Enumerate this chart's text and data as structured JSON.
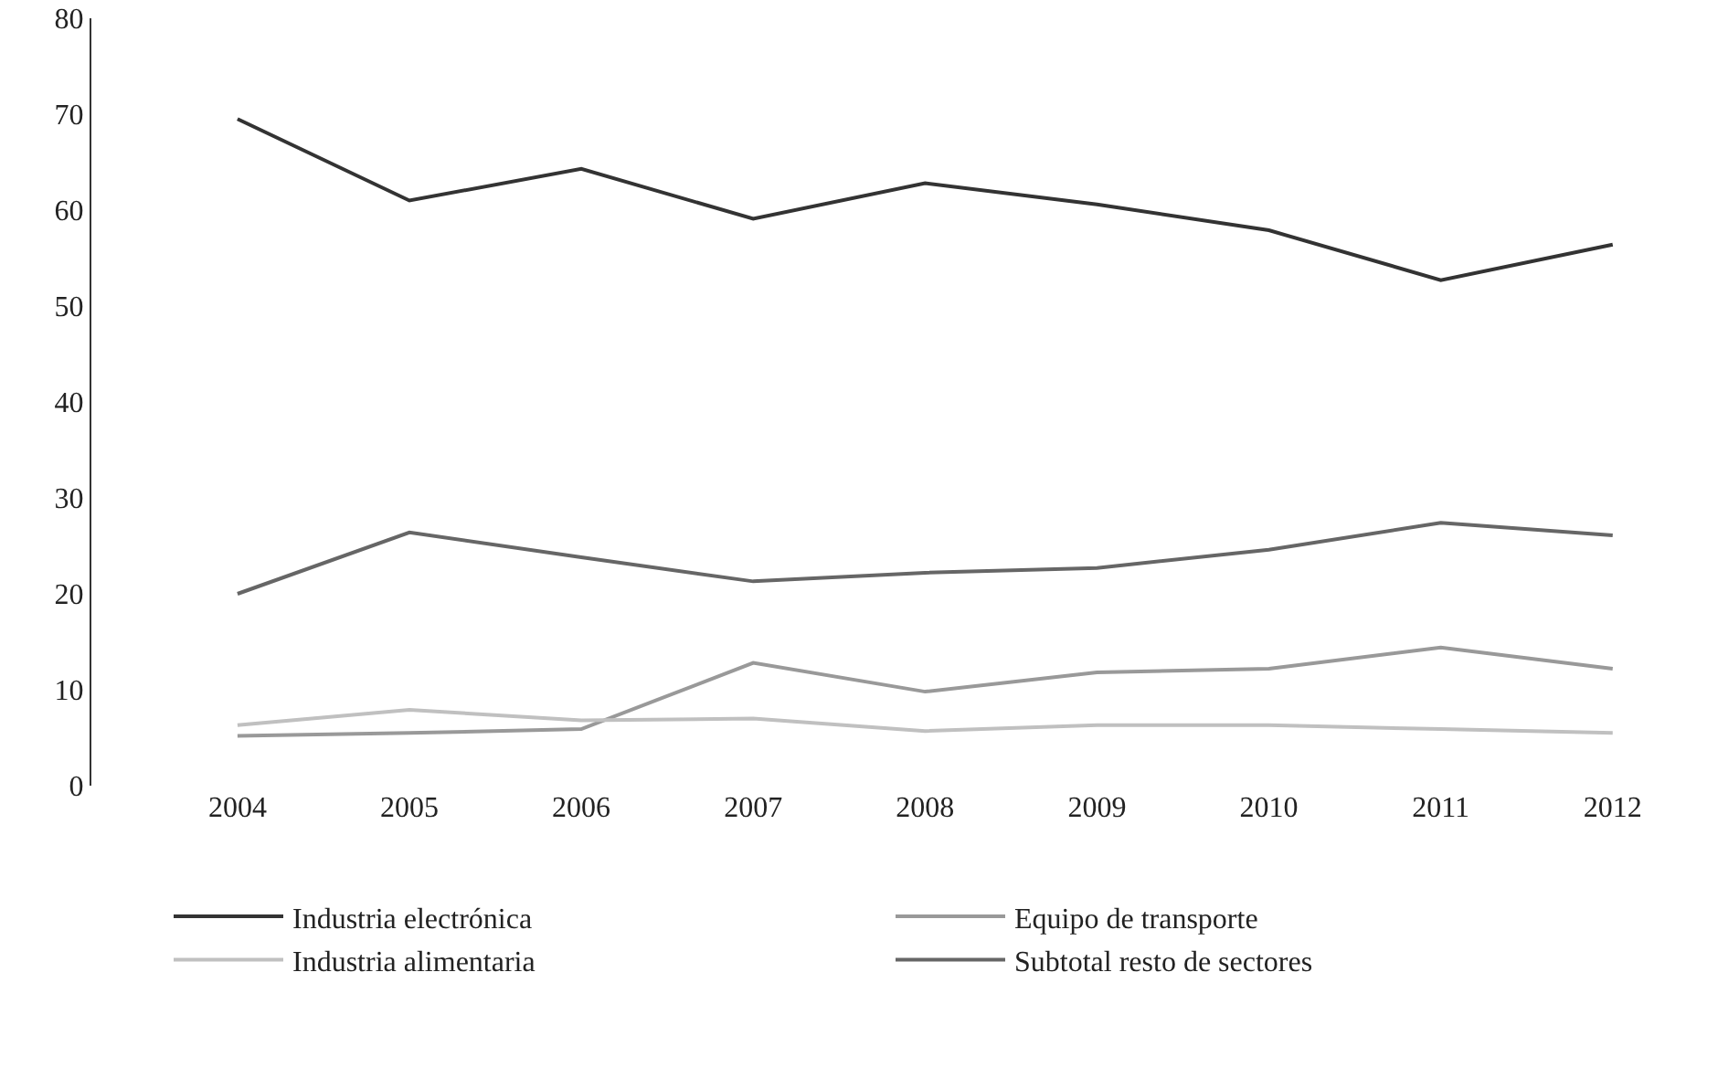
{
  "chart_data": {
    "type": "line",
    "categories": [
      "2004",
      "2005",
      "2006",
      "2007",
      "2008",
      "2009",
      "2010",
      "2011",
      "2012"
    ],
    "series": [
      {
        "name": "Industria electrónica",
        "color": "#333333",
        "values": [
          69.5,
          61.0,
          64.3,
          59.1,
          62.8,
          60.6,
          57.9,
          52.7,
          56.4
        ]
      },
      {
        "name": "Equipo de transporte",
        "color": "#999999",
        "values": [
          5.2,
          5.5,
          5.9,
          12.8,
          9.8,
          11.8,
          12.2,
          14.4,
          12.2
        ]
      },
      {
        "name": "Industria alimentaria",
        "color": "#c0c0c0",
        "values": [
          6.3,
          7.9,
          6.8,
          7.0,
          5.7,
          6.3,
          6.3,
          5.9,
          5.5
        ]
      },
      {
        "name": "Subtotal resto de sectores",
        "color": "#666666",
        "values": [
          20.0,
          26.4,
          23.8,
          21.3,
          22.2,
          22.7,
          24.6,
          27.4,
          26.1
        ]
      }
    ],
    "ylim": [
      0,
      80
    ],
    "yticks": [
      0,
      10,
      20,
      30,
      40,
      50,
      60,
      70,
      80
    ],
    "grid": false,
    "legend": "bottom",
    "marker": "none",
    "line_style": "solid"
  }
}
